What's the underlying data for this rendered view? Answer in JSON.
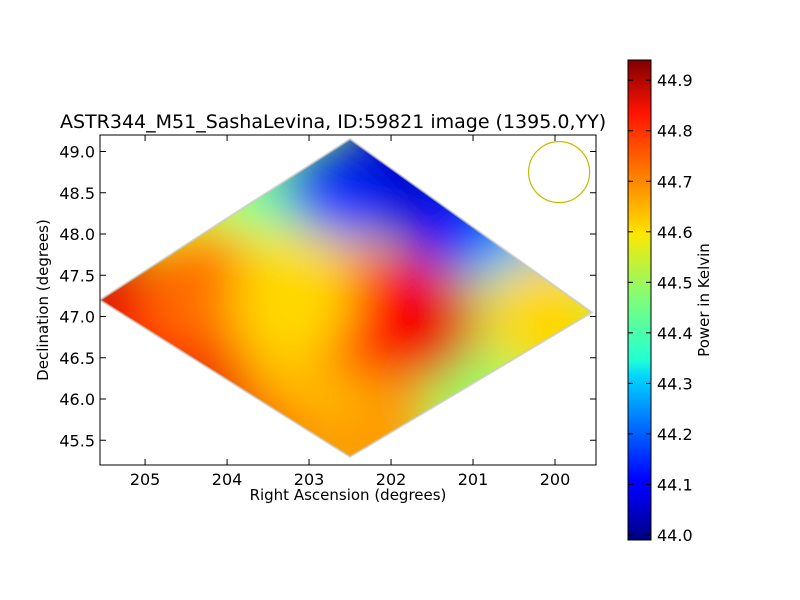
{
  "chart_data": {
    "type": "heatmap",
    "title": "ASTR344_M51_SashaLevina, ID:59821 image (1395.0,YY)",
    "xlabel": "Right Ascension (degrees)",
    "ylabel": "Declination (degrees)",
    "xlim": [
      205.55,
      199.5
    ],
    "ylim": [
      45.2,
      49.2
    ],
    "x_ticks": [
      "205",
      "204",
      "203",
      "202",
      "201",
      "200"
    ],
    "x_tick_values": [
      205,
      204,
      203,
      202,
      201,
      200
    ],
    "y_ticks": [
      "45.5",
      "46.0",
      "46.5",
      "47.0",
      "47.5",
      "48.0",
      "48.5",
      "49.0"
    ],
    "y_tick_values": [
      45.5,
      46.0,
      46.5,
      47.0,
      47.5,
      48.0,
      48.5,
      49.0
    ],
    "colorbar": {
      "label": "Power in Kelvin",
      "range": [
        43.99,
        44.94
      ],
      "ticks": [
        "44.0",
        "44.1",
        "44.2",
        "44.3",
        "44.4",
        "44.5",
        "44.6",
        "44.7",
        "44.8",
        "44.9"
      ],
      "tick_values": [
        44.0,
        44.1,
        44.2,
        44.3,
        44.4,
        44.5,
        44.6,
        44.7,
        44.8,
        44.9
      ],
      "colormap": "jet"
    },
    "map_footprint_corners": [
      {
        "ra": 202.5,
        "dec": 49.15
      },
      {
        "ra": 199.55,
        "dec": 47.05
      },
      {
        "ra": 202.5,
        "dec": 45.3
      },
      {
        "ra": 205.55,
        "dec": 47.2
      }
    ],
    "temperature_regions": [
      {
        "ra": 202.0,
        "dec": 48.7,
        "kelvin": 44.06
      },
      {
        "ra": 202.8,
        "dec": 48.2,
        "kelvin": 44.15
      },
      {
        "ra": 201.0,
        "dec": 47.9,
        "kelvin": 44.12
      },
      {
        "ra": 200.3,
        "dec": 47.4,
        "kelvin": 44.28
      },
      {
        "ra": 203.8,
        "dec": 47.9,
        "kelvin": 44.42
      },
      {
        "ra": 204.3,
        "dec": 47.7,
        "kelvin": 44.55
      },
      {
        "ra": 203.3,
        "dec": 47.4,
        "kelvin": 44.55
      },
      {
        "ra": 202.5,
        "dec": 47.2,
        "kelvin": 44.58
      },
      {
        "ra": 201.8,
        "dec": 46.5,
        "kelvin": 44.52
      },
      {
        "ra": 201.2,
        "dec": 46.8,
        "kelvin": 44.48
      },
      {
        "ra": 200.1,
        "dec": 47.0,
        "kelvin": 44.62
      },
      {
        "ra": 205.2,
        "dec": 47.1,
        "kelvin": 44.86
      },
      {
        "ra": 204.8,
        "dec": 46.7,
        "kelvin": 44.82
      },
      {
        "ra": 204.3,
        "dec": 47.3,
        "kelvin": 44.72
      },
      {
        "ra": 203.7,
        "dec": 46.0,
        "kelvin": 44.84
      },
      {
        "ra": 203.0,
        "dec": 45.9,
        "kelvin": 44.75
      },
      {
        "ra": 202.3,
        "dec": 45.6,
        "kelvin": 44.68
      },
      {
        "ra": 203.2,
        "dec": 46.6,
        "kelvin": 44.68
      },
      {
        "ra": 202.9,
        "dec": 46.4,
        "kelvin": 44.65
      },
      {
        "ra": 201.7,
        "dec": 46.95,
        "kelvin": 44.85
      },
      {
        "ra": 202.3,
        "dec": 47.05,
        "kelvin": 44.82
      },
      {
        "ra": 203.2,
        "dec": 47.2,
        "kelvin": 44.62
      }
    ],
    "beam": {
      "ra": 199.95,
      "dec": 48.75,
      "radius_deg": 0.37,
      "color": "#bfbf00"
    }
  }
}
